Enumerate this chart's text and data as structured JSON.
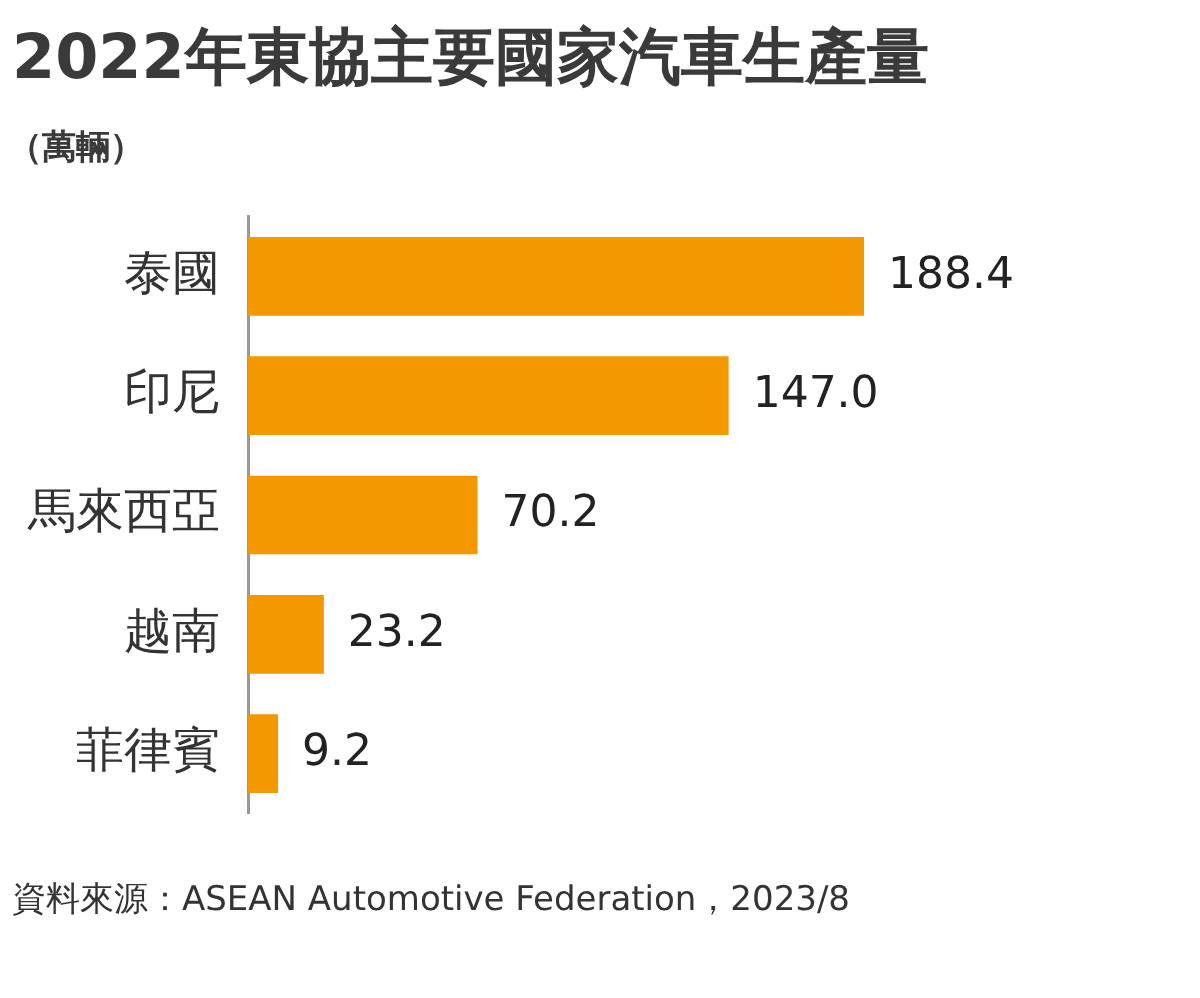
{
  "chart_data": {
    "type": "bar",
    "orientation": "horizontal",
    "title": "2022年東協主要國家汽車生產量",
    "subtitle": "（萬輛）",
    "categories": [
      "泰國",
      "印尼",
      "馬來西亞",
      "越南",
      "菲律賓"
    ],
    "values": [
      188.4,
      147.0,
      70.2,
      23.2,
      9.2
    ],
    "color": "#f39800",
    "data_labels": true,
    "value_labels": [
      "188.4",
      "147.0",
      "70.2",
      "23.2",
      "9.2"
    ],
    "legend": false,
    "tick_labels": "y",
    "annotations": [
      "資料來源：ASEAN Automotive Federation，2023/8"
    ]
  }
}
